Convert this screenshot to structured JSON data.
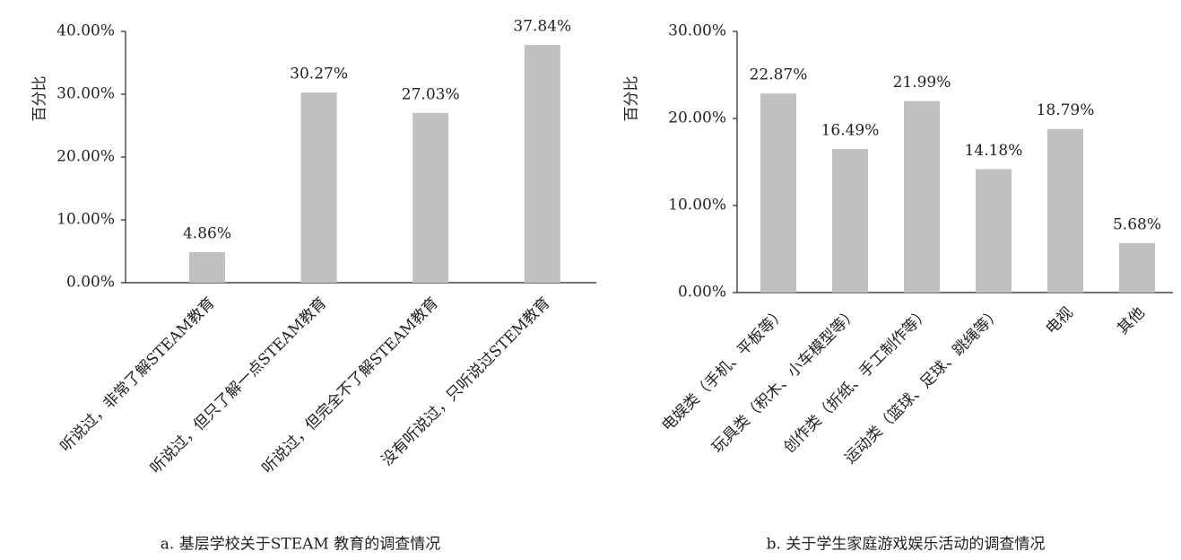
{
  "chart_data": [
    {
      "type": "bar",
      "caption": "a. 基层学校关于STEAM 教育的调查情况",
      "y_label": "百分比",
      "categories": [
        "听说过，非常了解STEAM教育",
        "听说过，但只了解一点STEAM教育",
        "听说过，但完全不了解STEAM教育",
        "没有听说过，只听说过STEM教育"
      ],
      "values": [
        4.86,
        30.27,
        27.03,
        37.84
      ],
      "value_labels": [
        "4.86%",
        "30.27%",
        "27.03%",
        "37.84%"
      ],
      "color": "#c0c0c0",
      "ylim": [
        0,
        40
      ],
      "yticks": [
        {
          "value": 0,
          "label": "0.00%"
        },
        {
          "value": 10,
          "label": "10.00%"
        },
        {
          "value": 20,
          "label": "20.00%"
        },
        {
          "value": 30,
          "label": "30.00%"
        },
        {
          "value": 40,
          "label": "40.00%"
        }
      ]
    },
    {
      "type": "bar",
      "caption": "b. 关于学生家庭游戏娱乐活动的调查情况",
      "y_label": "百分比",
      "categories": [
        "电娱类（手机、平板等）",
        "玩具类（积木、小车模型等）",
        "创作类（折纸、手工制作等）",
        "运动类（篮球、足球、跳绳等）",
        "电视",
        "其他"
      ],
      "values": [
        22.87,
        16.49,
        21.99,
        14.18,
        18.79,
        5.68
      ],
      "value_labels": [
        "22.87%",
        "16.49%",
        "21.99%",
        "14.18%",
        "18.79%",
        "5.68%"
      ],
      "color": "#c0c0c0",
      "ylim": [
        0,
        30
      ],
      "yticks": [
        {
          "value": 0,
          "label": "0.00%"
        },
        {
          "value": 10,
          "label": "10.00%"
        },
        {
          "value": 20,
          "label": "20.00%"
        },
        {
          "value": 30,
          "label": "30.00%"
        }
      ]
    }
  ]
}
